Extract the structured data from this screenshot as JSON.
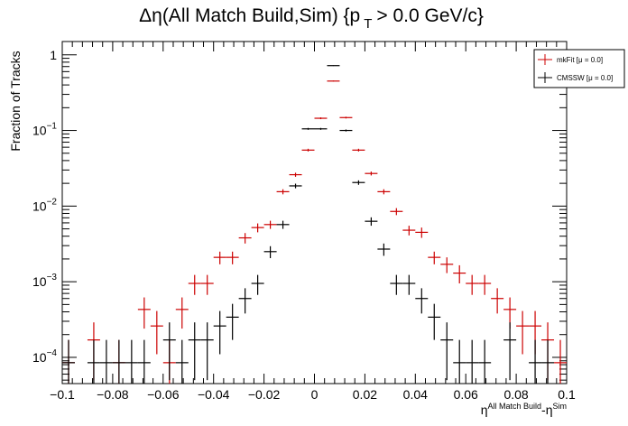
{
  "chart_data": {
    "type": "scatter",
    "title_main": "Δη(All Match Build,Sim) {p",
    "title_sub": "T",
    "title_tail": "> 0.0 GeV/c}",
    "ylabel": "Fraction of Tracks",
    "xlabel_base1": "η",
    "xlabel_sup1": "All Match Build",
    "xlabel_mid": "-η",
    "xlabel_sup2": "Sim",
    "xlim": [
      -0.1,
      0.1
    ],
    "ylim": [
      4.5e-05,
      1.5
    ],
    "log_y": true,
    "grid": false,
    "legend_position": "top-right",
    "bin_half_width": 0.0025,
    "x_ticks": [
      -0.1,
      -0.08,
      -0.06,
      -0.04,
      -0.02,
      0,
      0.02,
      0.04,
      0.06,
      0.08,
      0.1
    ],
    "x_tick_labels": [
      "−0.1",
      "−0.08",
      "−0.06",
      "−0.04",
      "−0.02",
      "0",
      "0.02",
      "0.04",
      "0.06",
      "0.08",
      "0.1"
    ],
    "y_ticks": [
      0.0001,
      0.001,
      0.01,
      0.1,
      1
    ],
    "y_tick_labels": [
      {
        "base": "10",
        "exp": "−4"
      },
      {
        "base": "10",
        "exp": "−3"
      },
      {
        "base": "10",
        "exp": "−2"
      },
      {
        "base": "10",
        "exp": "−1"
      },
      {
        "base": "1",
        "exp": ""
      }
    ],
    "series": [
      {
        "name": "mkFit  [μ = 0.0]",
        "color": "#cc0000",
        "points": [
          {
            "x": -0.0975,
            "y": 8.5e-05,
            "err": 8.5e-05
          },
          {
            "x": -0.0875,
            "y": 0.00017,
            "err": 0.00012
          },
          {
            "x": -0.0775,
            "y": 8.5e-05,
            "err": 8.5e-05
          },
          {
            "x": -0.0675,
            "y": 0.00043,
            "err": 0.00019
          },
          {
            "x": -0.0625,
            "y": 0.00026,
            "err": 0.00015
          },
          {
            "x": -0.0575,
            "y": 8.5e-05,
            "err": 8.5e-05
          },
          {
            "x": -0.0525,
            "y": 0.00043,
            "err": 0.00019
          },
          {
            "x": -0.0475,
            "y": 0.00095,
            "err": 0.00028
          },
          {
            "x": -0.0425,
            "y": 0.00095,
            "err": 0.00028
          },
          {
            "x": -0.0375,
            "y": 0.0021,
            "err": 0.0004
          },
          {
            "x": -0.0325,
            "y": 0.0021,
            "err": 0.0004
          },
          {
            "x": -0.0275,
            "y": 0.0038,
            "err": 0.0006
          },
          {
            "x": -0.0225,
            "y": 0.0052,
            "err": 0.0007
          },
          {
            "x": -0.0175,
            "y": 0.0057,
            "err": 0.0007
          },
          {
            "x": -0.0125,
            "y": 0.0155,
            "err": 0.0012
          },
          {
            "x": -0.0075,
            "y": 0.026,
            "err": 0.0016
          },
          {
            "x": -0.0025,
            "y": 0.055,
            "err": 0.0023
          },
          {
            "x": 0.0025,
            "y": 0.145,
            "err": 0.004
          },
          {
            "x": 0.0075,
            "y": 0.45,
            "err": 0.007
          },
          {
            "x": 0.0125,
            "y": 0.148,
            "err": 0.004
          },
          {
            "x": 0.0175,
            "y": 0.055,
            "err": 0.0023
          },
          {
            "x": 0.0225,
            "y": 0.027,
            "err": 0.0016
          },
          {
            "x": 0.0275,
            "y": 0.0155,
            "err": 0.0012
          },
          {
            "x": 0.0325,
            "y": 0.0085,
            "err": 0.0009
          },
          {
            "x": 0.0375,
            "y": 0.0048,
            "err": 0.0007
          },
          {
            "x": 0.0425,
            "y": 0.0045,
            "err": 0.0007
          },
          {
            "x": 0.0475,
            "y": 0.0021,
            "err": 0.0004
          },
          {
            "x": 0.0525,
            "y": 0.0017,
            "err": 0.0004
          },
          {
            "x": 0.0575,
            "y": 0.0013,
            "err": 0.00035
          },
          {
            "x": 0.0625,
            "y": 0.00095,
            "err": 0.00028
          },
          {
            "x": 0.0675,
            "y": 0.00095,
            "err": 0.00028
          },
          {
            "x": 0.0725,
            "y": 0.0006,
            "err": 0.00022
          },
          {
            "x": 0.0775,
            "y": 0.00043,
            "err": 0.00019
          },
          {
            "x": 0.0825,
            "y": 0.00026,
            "err": 0.00015
          },
          {
            "x": 0.0875,
            "y": 0.00026,
            "err": 0.00015
          },
          {
            "x": 0.0925,
            "y": 0.00017,
            "err": 0.00012
          },
          {
            "x": 0.0975,
            "y": 8.5e-05,
            "err": 8.5e-05
          }
        ]
      },
      {
        "name": "CMSSW  [μ = 0.0]",
        "color": "#000000",
        "points": [
          {
            "x": -0.0975,
            "y": 8.5e-05,
            "err": 8.5e-05
          },
          {
            "x": -0.0875,
            "y": 8.5e-05,
            "err": 8.5e-05
          },
          {
            "x": -0.0825,
            "y": 8.5e-05,
            "err": 8.5e-05
          },
          {
            "x": -0.0775,
            "y": 8.5e-05,
            "err": 8.5e-05
          },
          {
            "x": -0.0725,
            "y": 8.5e-05,
            "err": 8.5e-05
          },
          {
            "x": -0.0675,
            "y": 8.5e-05,
            "err": 8.5e-05
          },
          {
            "x": -0.0575,
            "y": 0.00017,
            "err": 0.00012
          },
          {
            "x": -0.0525,
            "y": 8.5e-05,
            "err": 8.5e-05
          },
          {
            "x": -0.0475,
            "y": 0.00017,
            "err": 0.00012
          },
          {
            "x": -0.0425,
            "y": 0.00017,
            "err": 0.00012
          },
          {
            "x": -0.0375,
            "y": 0.00026,
            "err": 0.00015
          },
          {
            "x": -0.0325,
            "y": 0.00034,
            "err": 0.00017
          },
          {
            "x": -0.0275,
            "y": 0.0006,
            "err": 0.00022
          },
          {
            "x": -0.0225,
            "y": 0.00095,
            "err": 0.00028
          },
          {
            "x": -0.0175,
            "y": 0.0025,
            "err": 0.00045
          },
          {
            "x": -0.0125,
            "y": 0.0057,
            "err": 0.0007
          },
          {
            "x": -0.0075,
            "y": 0.0185,
            "err": 0.0013
          },
          {
            "x": -0.0025,
            "y": 0.105,
            "err": 0.003
          },
          {
            "x": 0.0025,
            "y": 0.105,
            "err": 0.003
          },
          {
            "x": 0.0075,
            "y": 0.72,
            "err": 0.008
          },
          {
            "x": 0.0125,
            "y": 0.1,
            "err": 0.003
          },
          {
            "x": 0.0175,
            "y": 0.0205,
            "err": 0.0014
          },
          {
            "x": 0.0225,
            "y": 0.0063,
            "err": 0.0008
          },
          {
            "x": 0.0275,
            "y": 0.0027,
            "err": 0.0005
          },
          {
            "x": 0.0325,
            "y": 0.00095,
            "err": 0.00028
          },
          {
            "x": 0.0375,
            "y": 0.00095,
            "err": 0.00028
          },
          {
            "x": 0.0425,
            "y": 0.0006,
            "err": 0.00022
          },
          {
            "x": 0.0475,
            "y": 0.00034,
            "err": 0.00017
          },
          {
            "x": 0.0525,
            "y": 0.00017,
            "err": 0.00012
          },
          {
            "x": 0.0575,
            "y": 8.5e-05,
            "err": 8.5e-05
          },
          {
            "x": 0.0625,
            "y": 8.5e-05,
            "err": 8.5e-05
          },
          {
            "x": 0.0675,
            "y": 8.5e-05,
            "err": 8.5e-05
          },
          {
            "x": 0.0775,
            "y": 0.00017,
            "err": 0.00012
          },
          {
            "x": 0.0875,
            "y": 8.5e-05,
            "err": 8.5e-05
          },
          {
            "x": 0.0925,
            "y": 8.5e-05,
            "err": 8.5e-05
          }
        ]
      }
    ]
  }
}
